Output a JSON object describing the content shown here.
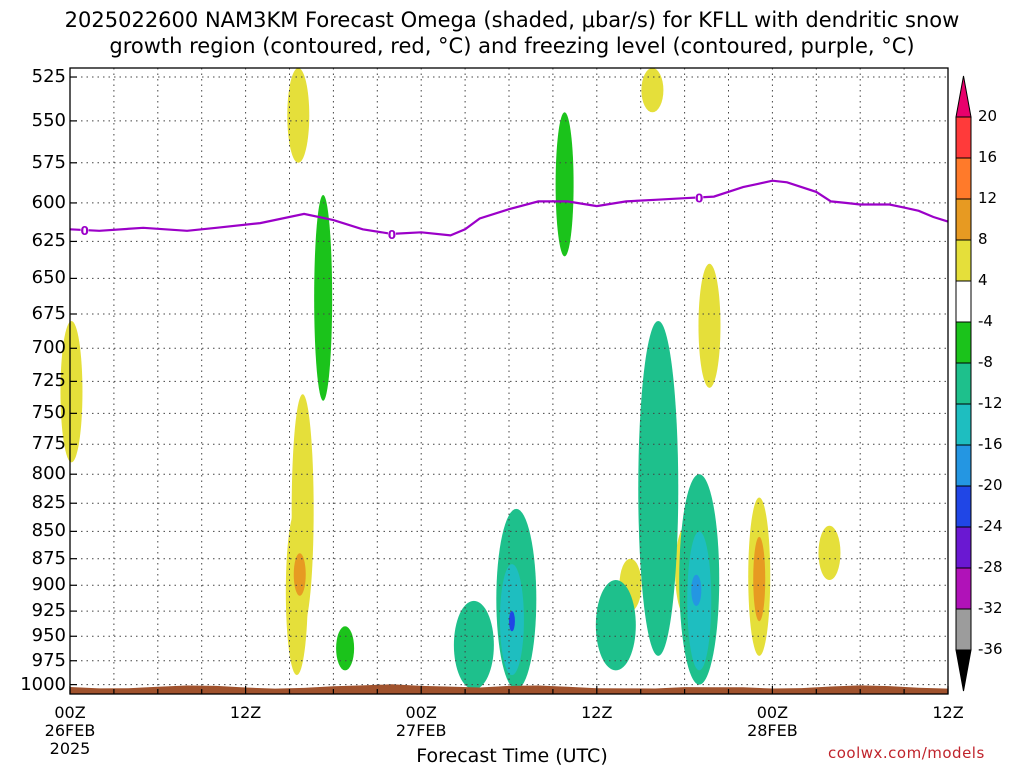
{
  "title_line1": "2025022600 NAM3KM Forecast Omega (shaded, μbar/s) for KFLL with dendritic snow",
  "title_line2": "growth region (contoured, red, °C) and freezing level (contoured, purple, °C)",
  "credit": "coolwx.com/models",
  "chart_data": {
    "type": "heatmap",
    "title": "2025022600 NAM3KM Forecast Omega (shaded, μbar/s) for KFLL with dendritic snow growth region (contoured, red, °C) and freezing level (contoured, purple, °C)",
    "xlabel": "Forecast Time (UTC)",
    "ylabel": "",
    "x_range_hours": [
      0,
      60
    ],
    "y_range_mb": [
      520,
      1010
    ],
    "y_scale": "log-pressure, reversed",
    "grid": true,
    "x_ticks": [
      {
        "hour": 0,
        "label": "00Z",
        "date": "26FEB",
        "year": "2025"
      },
      {
        "hour": 12,
        "label": "12Z",
        "date": "",
        "year": ""
      },
      {
        "hour": 24,
        "label": "00Z",
        "date": "27FEB",
        "year": ""
      },
      {
        "hour": 36,
        "label": "12Z",
        "date": "",
        "year": ""
      },
      {
        "hour": 48,
        "label": "00Z",
        "date": "28FEB",
        "year": ""
      },
      {
        "hour": 60,
        "label": "12Z",
        "date": "",
        "year": ""
      }
    ],
    "y_ticks": [
      "525",
      "550",
      "575",
      "600",
      "625",
      "650",
      "675",
      "700",
      "725",
      "750",
      "775",
      "800",
      "825",
      "850",
      "875",
      "900",
      "925",
      "950",
      "975",
      "1000"
    ],
    "freezing_level": {
      "label": "0",
      "color": "#9b00c8",
      "points": [
        [
          0,
          617
        ],
        [
          2,
          618
        ],
        [
          5,
          616
        ],
        [
          8,
          618
        ],
        [
          10,
          616
        ],
        [
          13,
          613
        ],
        [
          16,
          607
        ],
        [
          18,
          611
        ],
        [
          20,
          617
        ],
        [
          22,
          620
        ],
        [
          24,
          619
        ],
        [
          26,
          621
        ],
        [
          27,
          617
        ],
        [
          28,
          610
        ],
        [
          30,
          604
        ],
        [
          32,
          599
        ],
        [
          34,
          599
        ],
        [
          36,
          602
        ],
        [
          38,
          599
        ],
        [
          40,
          598
        ],
        [
          42,
          597
        ],
        [
          44,
          596
        ],
        [
          46,
          590
        ],
        [
          47,
          588
        ],
        [
          48,
          586
        ],
        [
          49,
          587
        ],
        [
          51,
          593
        ],
        [
          52,
          599
        ],
        [
          53,
          600
        ],
        [
          54,
          601
        ],
        [
          56,
          601
        ],
        [
          57,
          603
        ],
        [
          58,
          605
        ],
        [
          59,
          609
        ],
        [
          60,
          612
        ]
      ],
      "label_hours": [
        1,
        22,
        43
      ]
    },
    "series": [
      {
        "name": "omega positive",
        "cells": [
          {
            "h": 0.1,
            "p0": 680,
            "p1": 790,
            "v": 4
          },
          {
            "h": 15.6,
            "p0": 520,
            "p1": 575,
            "v": 4
          },
          {
            "h": 39.8,
            "p0": 520,
            "p1": 545,
            "v": 4
          },
          {
            "h": 15.9,
            "p0": 735,
            "p1": 940,
            "v": 4
          },
          {
            "h": 15.5,
            "p0": 830,
            "p1": 990,
            "v": 4
          },
          {
            "h": 15.7,
            "p0": 870,
            "p1": 910,
            "v": 8
          },
          {
            "h": 38.3,
            "p0": 875,
            "p1": 925,
            "v": 4
          },
          {
            "h": 43.7,
            "p0": 640,
            "p1": 730,
            "v": 4
          },
          {
            "h": 42.1,
            "p0": 845,
            "p1": 930,
            "v": 4
          },
          {
            "h": 47.1,
            "p0": 820,
            "p1": 970,
            "v": 4
          },
          {
            "h": 47.1,
            "p0": 855,
            "p1": 935,
            "v": 8
          },
          {
            "h": 51.9,
            "p0": 845,
            "p1": 895,
            "v": 4
          }
        ]
      },
      {
        "name": "omega negative",
        "cells": [
          {
            "h": 17.3,
            "p0": 595,
            "p1": 740,
            "v": -6
          },
          {
            "h": 18.8,
            "p0": 940,
            "p1": 985,
            "v": -6
          },
          {
            "h": 27.6,
            "p0": 915,
            "p1": 1005,
            "v": -8
          },
          {
            "h": 30.5,
            "p0": 830,
            "p1": 1005,
            "v": -8
          },
          {
            "h": 30.2,
            "p0": 880,
            "p1": 990,
            "v": -14
          },
          {
            "h": 30.2,
            "p0": 925,
            "p1": 945,
            "v": -22
          },
          {
            "h": 33.8,
            "p0": 545,
            "p1": 635,
            "v": -6
          },
          {
            "h": 37.3,
            "p0": 895,
            "p1": 985,
            "v": -8
          },
          {
            "h": 40.2,
            "p0": 680,
            "p1": 970,
            "v": -8
          },
          {
            "h": 39.6,
            "p0": 745,
            "p1": 820,
            "v": -10
          },
          {
            "h": 43.0,
            "p0": 800,
            "p1": 1000,
            "v": -8
          },
          {
            "h": 43.0,
            "p0": 850,
            "p1": 985,
            "v": -14
          },
          {
            "h": 42.8,
            "p0": 890,
            "p1": 920,
            "v": -18
          }
        ]
      }
    ],
    "colorbar": {
      "labels": [
        "20",
        "16",
        "12",
        "8",
        "4",
        "-4",
        "-8",
        "-12",
        "-16",
        "-20",
        "-24",
        "-28",
        "-32",
        "-36"
      ],
      "colors": {
        "pos20": "#e8006c",
        "pos16": "#ff3a3a",
        "pos12": "#ff7a2a",
        "pos8": "#e79a22",
        "pos4": "#f0c238",
        "pos0": "#e5df3a",
        "neutral": "#ffffff",
        "neg4": "#1bc31b",
        "neg8": "#1ec08c",
        "neg12": "#1ebec0",
        "neg16": "#2496e2",
        "neg20": "#2046e6",
        "neg24": "#6a18d2",
        "neg28": "#b012b8",
        "neg32": "#9c9c9c",
        "neg36": "#000000"
      }
    },
    "terrain_color": "#a0522d"
  }
}
